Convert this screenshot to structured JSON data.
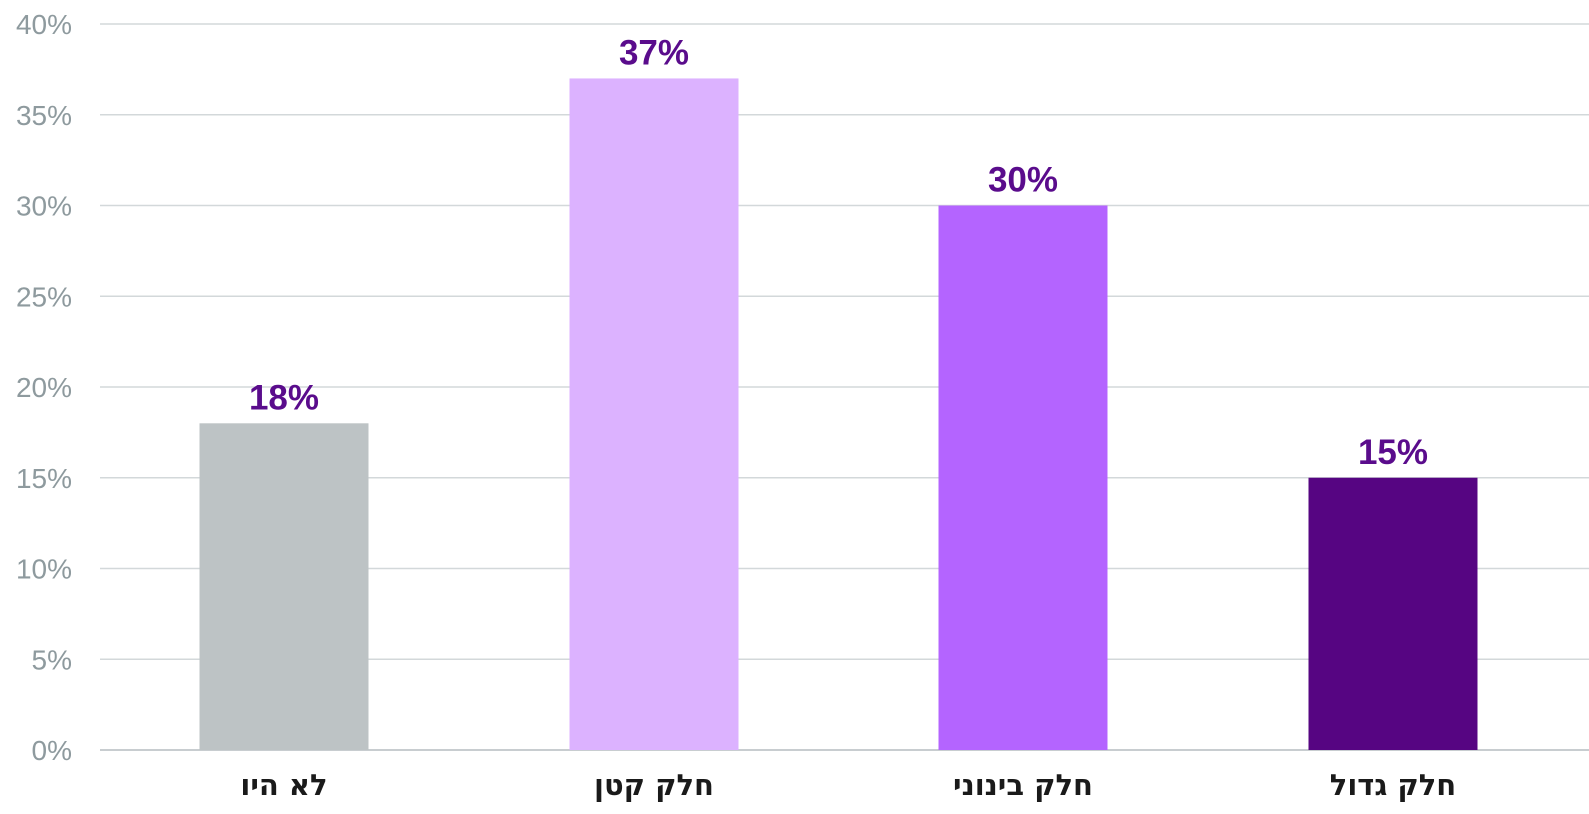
{
  "chart_data": {
    "type": "bar",
    "categories": [
      "לא היו",
      "חלק קטן",
      "חלק בינוני",
      "חלק גדול"
    ],
    "values": [
      18,
      37,
      30,
      15
    ],
    "value_labels": [
      "18%",
      "37%",
      "30%",
      "15%"
    ],
    "bar_colors": [
      "#bdc3c5",
      "#dcb2ff",
      "#b464ff",
      "#560582"
    ],
    "value_label_color": "#5a0c8c",
    "ylim": [
      0,
      40
    ],
    "yticks": [
      0,
      5,
      10,
      15,
      20,
      25,
      30,
      35,
      40
    ],
    "ytick_labels": [
      "0%",
      "5%",
      "10%",
      "15%",
      "20%",
      "25%",
      "30%",
      "35%",
      "40%"
    ],
    "grid": true,
    "legend": "none",
    "title": "",
    "xlabel": "",
    "ylabel": ""
  }
}
